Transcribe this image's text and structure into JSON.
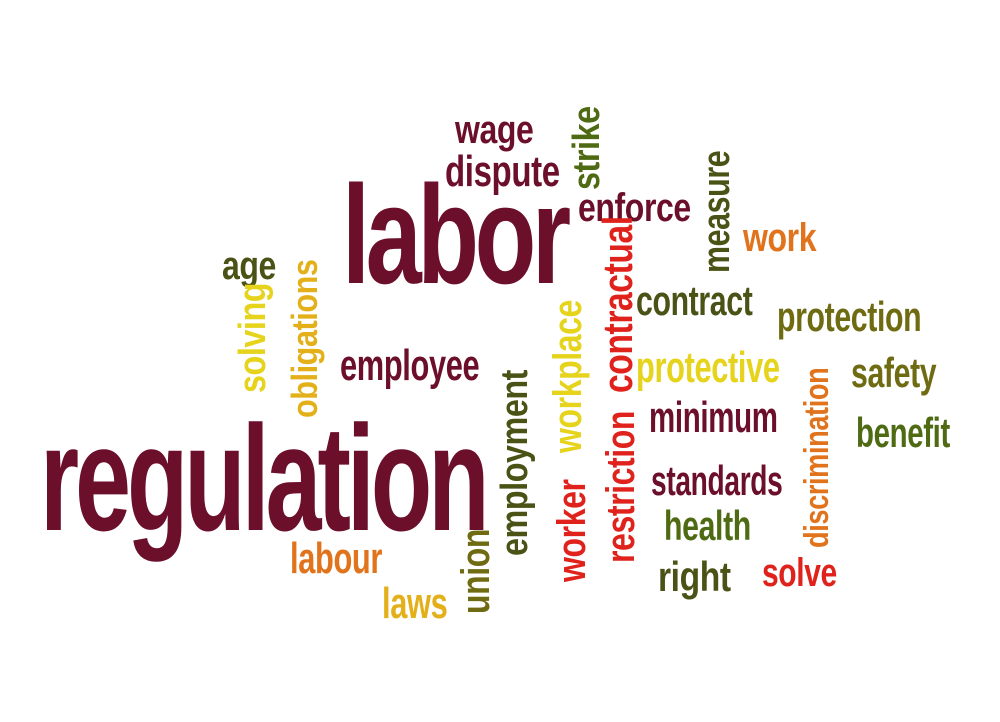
{
  "colors": {
    "maroon": "#6b0f2b",
    "dark_olive": "#4a5215",
    "olive": "#6e6b12",
    "green": "#4e6a12",
    "orange": "#e0731c",
    "gold": "#e3b01a",
    "yellow": "#e5d31c",
    "red": "#e0221c"
  },
  "words": {
    "regulation": "regulation",
    "labor": "labor",
    "wage": "wage",
    "dispute": "dispute",
    "strike": "strike",
    "enforce": "enforce",
    "measure": "measure",
    "work": "work",
    "age": "age",
    "solving": "solving",
    "obligations": "obligations",
    "employee": "employee",
    "contractual": "contractual",
    "workplace": "workplace",
    "contract": "contract",
    "protection": "protection",
    "protective": "protective",
    "discrimination": "discrimination",
    "safety": "safety",
    "benefit": "benefit",
    "minimum": "minimum",
    "employment": "employment",
    "restriction": "restriction",
    "standards": "standards",
    "health": "health",
    "worker": "worker",
    "right": "right",
    "solve": "solve",
    "union": "union",
    "labour": "labour",
    "laws": "laws"
  },
  "word_colors": {
    "regulation": "maroon",
    "labor": "maroon",
    "wage": "maroon",
    "dispute": "maroon",
    "strike": "green",
    "enforce": "maroon",
    "measure": "dark_olive",
    "work": "orange",
    "age": "dark_olive",
    "solving": "yellow",
    "obligations": "gold",
    "employee": "maroon",
    "contractual": "red",
    "workplace": "yellow",
    "contract": "dark_olive",
    "protection": "olive",
    "protective": "yellow",
    "discrimination": "orange",
    "safety": "olive",
    "benefit": "green",
    "minimum": "maroon",
    "employment": "dark_olive",
    "restriction": "red",
    "standards": "maroon",
    "health": "green",
    "worker": "red",
    "right": "dark_olive",
    "solve": "red",
    "union": "olive",
    "labour": "orange",
    "laws": "gold"
  }
}
